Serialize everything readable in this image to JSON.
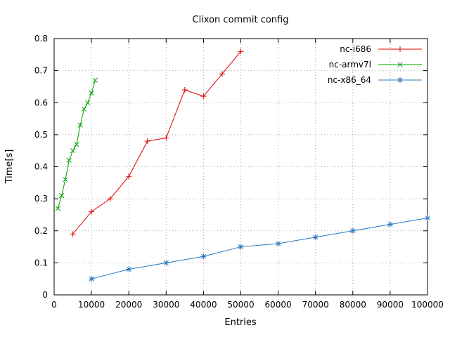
{
  "chart_data": {
    "type": "line",
    "title": "Clixon commit config",
    "xlabel": "Entries",
    "ylabel": "Time[s]",
    "xlim": [
      0,
      100000
    ],
    "ylim": [
      0,
      0.8
    ],
    "xtick_step": 10000,
    "ytick_step": 0.1,
    "grid": true,
    "legend_position": "top-right-inside",
    "series": [
      {
        "name": "nc-i686",
        "color": "#dd0000",
        "marker": "plus",
        "x": [
          5000,
          10000,
          15000,
          20000,
          25000,
          30000,
          35000,
          40000,
          45000,
          50000
        ],
        "y": [
          0.19,
          0.26,
          0.3,
          0.37,
          0.48,
          0.49,
          0.64,
          0.62,
          0.69,
          0.76
        ]
      },
      {
        "name": "nc-armv7l",
        "color": "#00a000",
        "marker": "cross",
        "x": [
          1000,
          2000,
          3000,
          4000,
          5000,
          6000,
          7000,
          8000,
          9000,
          10000,
          11000
        ],
        "y": [
          0.27,
          0.31,
          0.36,
          0.42,
          0.45,
          0.47,
          0.53,
          0.58,
          0.6,
          0.63,
          0.67
        ]
      },
      {
        "name": "nc-x86_64",
        "color": "#2878be",
        "marker": "star",
        "x": [
          10000,
          20000,
          30000,
          40000,
          50000,
          60000,
          70000,
          80000,
          90000,
          100000
        ],
        "y": [
          0.05,
          0.08,
          0.1,
          0.12,
          0.15,
          0.16,
          0.18,
          0.2,
          0.22,
          0.24
        ]
      }
    ]
  },
  "style": {
    "grid_color": "#aaaaaa",
    "axis_color": "#000000",
    "background": "#ffffff"
  }
}
